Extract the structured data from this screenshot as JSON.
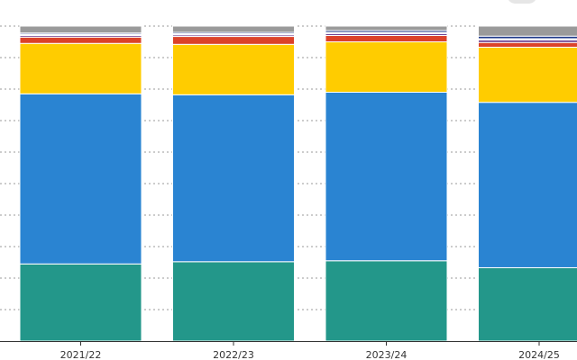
{
  "chart_data": {
    "type": "bar",
    "stacked": true,
    "normalized": true,
    "title": "",
    "xlabel": "",
    "ylabel": "",
    "ylim": [
      0,
      1
    ],
    "grid": true,
    "categories": [
      "2021/22",
      "2022/23",
      "2023/24",
      "2024/25"
    ],
    "series": [
      {
        "name": "teal",
        "color": "#23978a",
        "values": [
          0.245,
          0.252,
          0.255,
          0.233
        ]
      },
      {
        "name": "blue",
        "color": "#2a84d2",
        "values": [
          0.54,
          0.53,
          0.535,
          0.525
        ]
      },
      {
        "name": "yellow",
        "color": "#ffcc00",
        "values": [
          0.16,
          0.16,
          0.16,
          0.175
        ]
      },
      {
        "name": "red",
        "color": "#dc4229",
        "values": [
          0.02,
          0.025,
          0.02,
          0.015
        ]
      },
      {
        "name": "purple",
        "color": "#6c3d8f",
        "values": [
          0.005,
          0.005,
          0.006,
          0.008
        ]
      },
      {
        "name": "white",
        "color": "#ffffff",
        "values": [
          0.004,
          0.004,
          0.004,
          0.004
        ]
      },
      {
        "name": "navy",
        "color": "#1e3a8a",
        "values": [
          0.004,
          0.004,
          0.006,
          0.008
        ]
      },
      {
        "name": "grey",
        "color": "#9a9a9a",
        "values": [
          0.022,
          0.02,
          0.014,
          0.032
        ]
      }
    ],
    "colors": {
      "gridline": "#999999",
      "axis": "#333333",
      "background": "#ffffff"
    }
  }
}
